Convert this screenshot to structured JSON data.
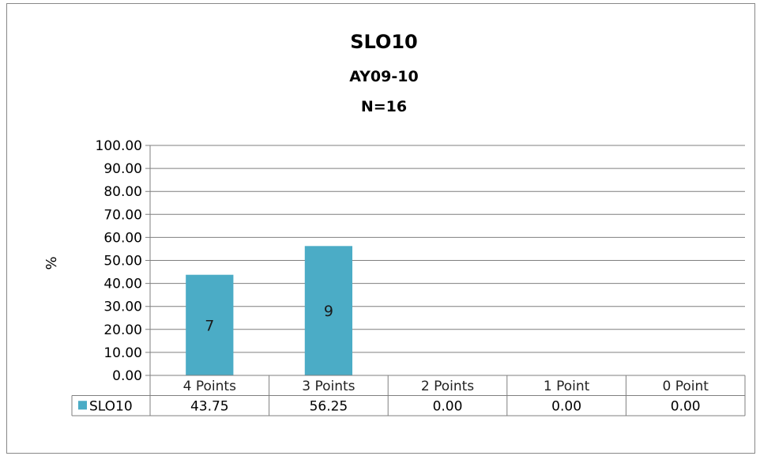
{
  "chart_data": {
    "type": "bar",
    "title": "SLO10",
    "subtitle_lines": [
      "AY09-10",
      "N=16"
    ],
    "ylabel": "%",
    "xlabel": "",
    "ylim": [
      0,
      100
    ],
    "yticks": [
      "100.00",
      "90.00",
      "80.00",
      "70.00",
      "60.00",
      "50.00",
      "40.00",
      "30.00",
      "20.00",
      "10.00",
      "0.00"
    ],
    "grid": true,
    "categories": [
      "4 Points",
      "3 Points",
      "2 Points",
      "1 Point",
      "0 Point"
    ],
    "series": [
      {
        "name": "SLO10",
        "values": [
          43.75,
          56.25,
          0.0,
          0.0,
          0.0
        ],
        "display_values": [
          "43.75",
          "56.25",
          "0.00",
          "0.00",
          "0.00"
        ],
        "data_labels": [
          "7",
          "9",
          "",
          "",
          ""
        ],
        "color": "#4bacc6"
      }
    ],
    "legend": "data-table"
  }
}
